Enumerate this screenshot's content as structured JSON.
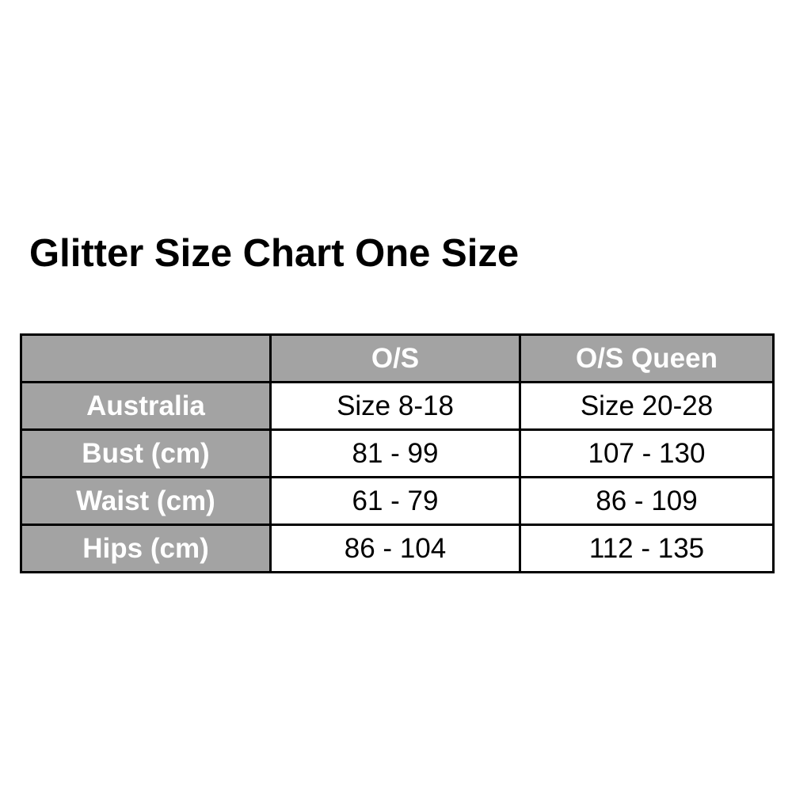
{
  "title": "Glitter Size Chart One Size",
  "header_fill": "#a3a3a3",
  "table": {
    "columns": [
      "",
      "O/S",
      "O/S Queen"
    ],
    "rows": [
      {
        "label": "Australia",
        "values": [
          "Size 8-18",
          "Size 20-28"
        ]
      },
      {
        "label": "Bust (cm)",
        "values": [
          "81 - 99",
          "107 - 130"
        ]
      },
      {
        "label": "Waist (cm)",
        "values": [
          "61 - 79",
          "86 - 109"
        ]
      },
      {
        "label": "Hips (cm)",
        "values": [
          "86 - 104",
          "112 - 135"
        ]
      }
    ]
  }
}
